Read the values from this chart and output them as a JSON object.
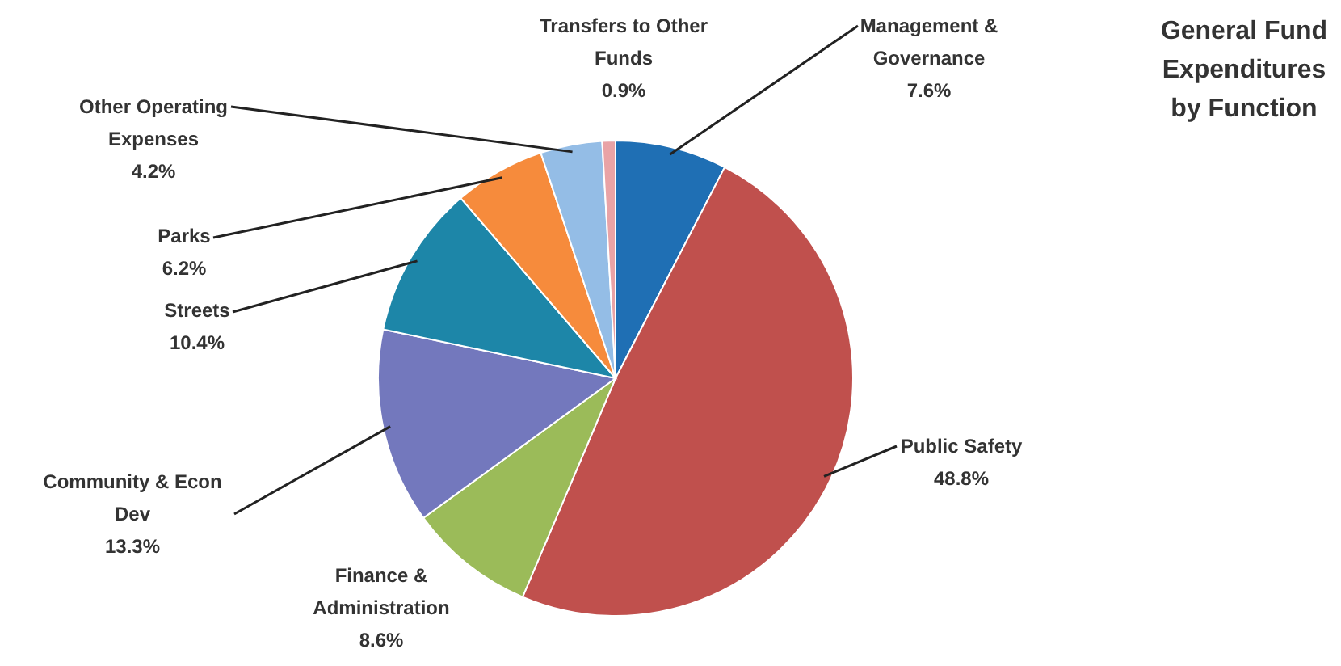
{
  "chart_data": {
    "type": "pie",
    "title": "General Fund Expenditures by Function",
    "categories": [
      "Management & Governance",
      "Public Safety",
      "Finance & Administration",
      "Community & Econ Dev",
      "Streets",
      "Parks",
      "Other Operating Expenses",
      "Transfers to Other Funds"
    ],
    "values": [
      7.6,
      48.8,
      8.6,
      13.3,
      10.4,
      6.2,
      4.2,
      0.9
    ],
    "colors": [
      "#1f6fb4",
      "#c0504d",
      "#9bbb59",
      "#7378bd",
      "#1d86a8",
      "#f68b3c",
      "#94bde6",
      "#e9a3a6"
    ],
    "value_labels": [
      "7.6%",
      "48.8%",
      "8.6%",
      "13.3%",
      "10.4%",
      "6.2%",
      "4.2%",
      "0.9%"
    ]
  }
}
